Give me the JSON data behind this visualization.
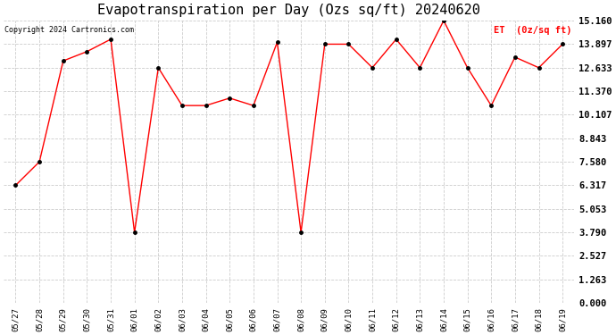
{
  "title": "Evapotranspiration per Day (Ozs sq/ft) 20240620",
  "legend_label": "ET  (0z/sq ft)",
  "copyright": "Copyright 2024 Cartronics.com",
  "x_labels": [
    "05/27",
    "05/28",
    "05/29",
    "05/30",
    "05/31",
    "06/01",
    "06/02",
    "06/03",
    "06/04",
    "06/05",
    "06/06",
    "06/07",
    "06/08",
    "06/09",
    "06/10",
    "06/11",
    "06/12",
    "06/13",
    "06/14",
    "06/15",
    "06/16",
    "06/17",
    "06/18",
    "06/19"
  ],
  "y_values": [
    6.317,
    7.58,
    13.0,
    13.5,
    14.16,
    3.79,
    12.633,
    10.6,
    10.6,
    11.0,
    10.6,
    14.0,
    3.79,
    13.897,
    13.897,
    12.633,
    14.16,
    12.633,
    15.16,
    12.633,
    10.6,
    13.2,
    12.633,
    13.897
  ],
  "y_ticks": [
    0.0,
    1.263,
    2.527,
    3.79,
    5.053,
    6.317,
    7.58,
    8.843,
    10.107,
    11.37,
    12.633,
    13.897,
    15.16
  ],
  "line_color": "red",
  "marker_color": "black",
  "bg_color": "#ffffff",
  "plot_bg_color": "#ffffff",
  "grid_color": "#cccccc",
  "title_fontsize": 11,
  "legend_color": "red",
  "copyright_color": "black",
  "ylim": [
    0.0,
    15.16
  ]
}
